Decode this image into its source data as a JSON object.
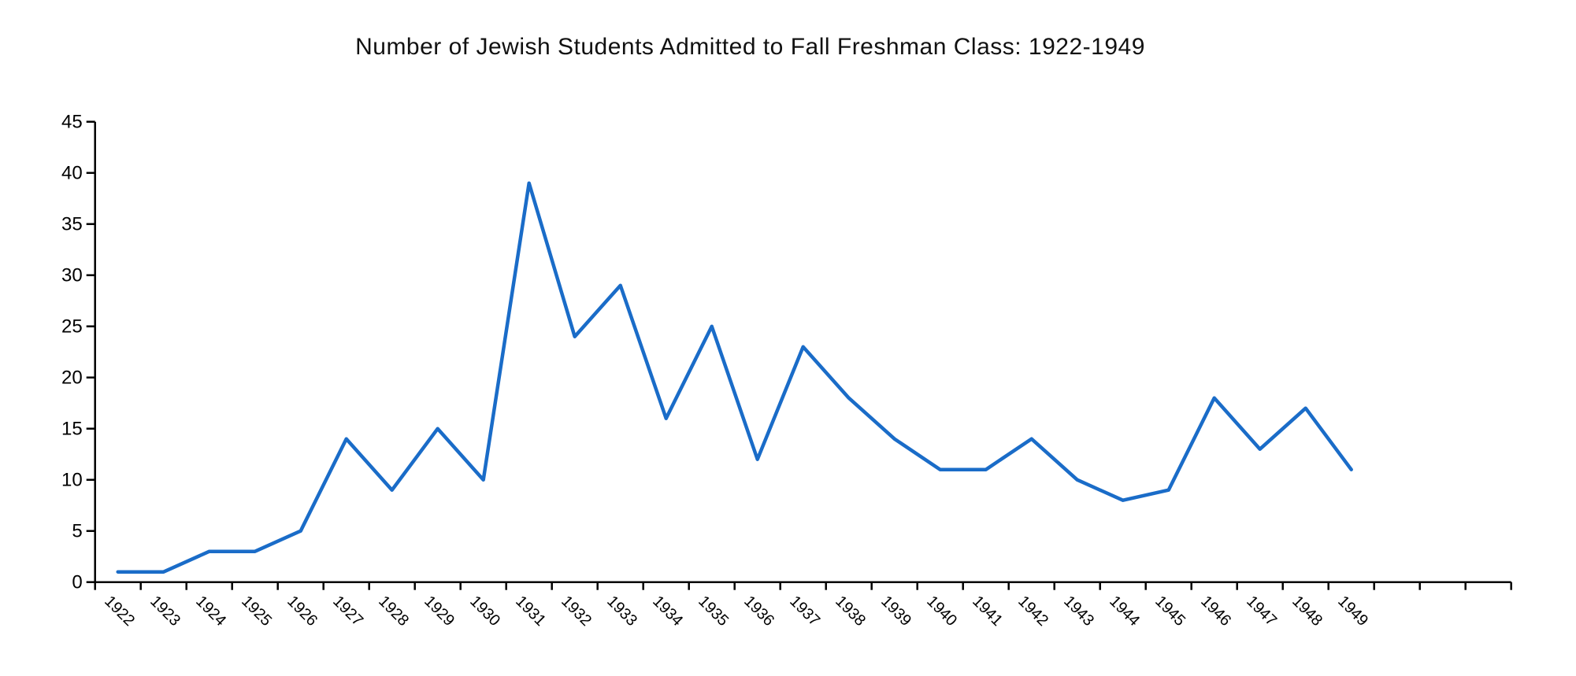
{
  "chart": {
    "title": "Number of Jewish Students Admitted to Fall Freshman Class: 1922-1949"
  },
  "chart_data": {
    "type": "line",
    "title": "Number of Jewish Students Admitted to Fall Freshman Class: 1922-1949",
    "categories": [
      "1922",
      "1923",
      "1924",
      "1925",
      "1926",
      "1927",
      "1928",
      "1929",
      "1930",
      "1931",
      "1932",
      "1933",
      "1934",
      "1935",
      "1936",
      "1937",
      "1938",
      "1939",
      "1940",
      "1941",
      "1942",
      "1943",
      "1944",
      "1945",
      "1946",
      "1947",
      "1948",
      "1949"
    ],
    "values": [
      1,
      1,
      3,
      3,
      5,
      14,
      9,
      15,
      10,
      39,
      24,
      29,
      16,
      25,
      12,
      23,
      18,
      14,
      11,
      11,
      14,
      10,
      8,
      9,
      18,
      13,
      17,
      11
    ],
    "xlabel": "",
    "ylabel": "",
    "ylim": [
      0,
      45
    ],
    "yticks": [
      0,
      5,
      10,
      15,
      20,
      25,
      30,
      35,
      40,
      45
    ],
    "trailing_unlabeled_slots": 3,
    "grid": false,
    "legend": "none",
    "line_color": "#1A6CC8",
    "axis_color": "#000000",
    "text_color": "#000000",
    "background_color": "#FFFFFF"
  }
}
